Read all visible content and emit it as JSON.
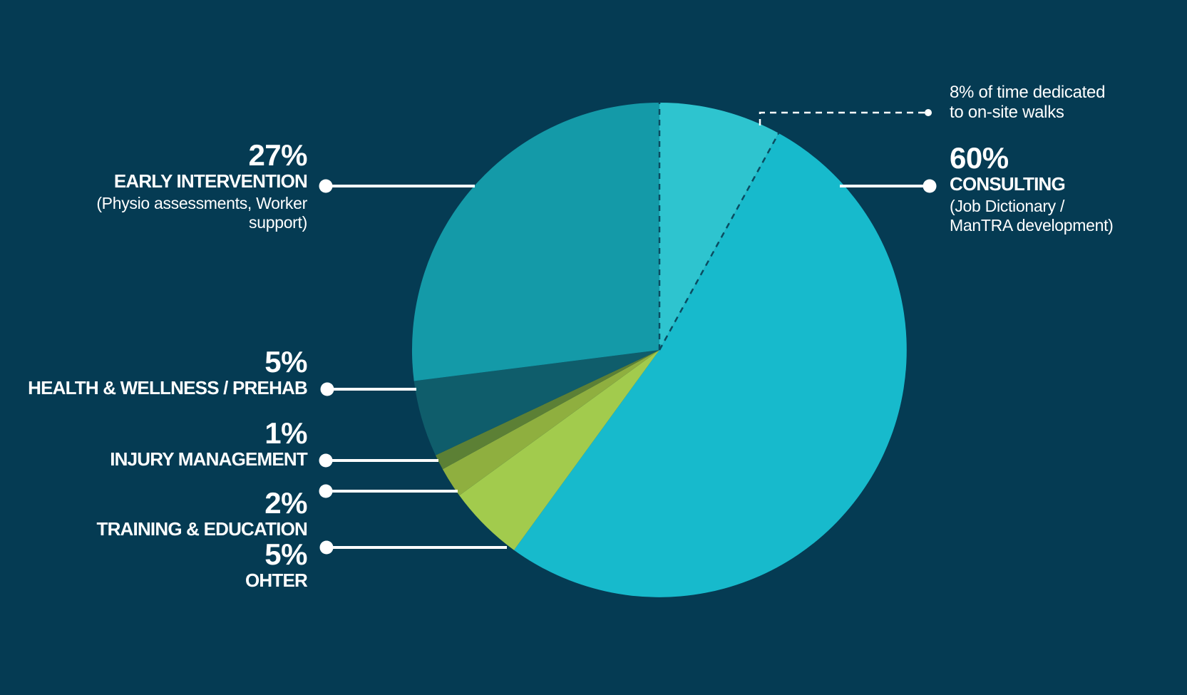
{
  "canvas": {
    "background": "#053B53"
  },
  "chart_data": {
    "type": "pie",
    "title": "",
    "legend": "none",
    "unit": "%",
    "start_angle_deg": 0,
    "clockwise": true,
    "divider_color": "#0A4C61",
    "leader_color": "#FFFFFF",
    "slices": [
      {
        "id": "consulting-on-site-walks",
        "label": "CONSULTING - on-site walks",
        "value": 8,
        "color": "#2EC4CF",
        "dashed_outline": true,
        "note": "8% of time dedicated to on-site walks (sub-slice of the 60% CONSULTING share)"
      },
      {
        "id": "consulting",
        "label": "CONSULTING (Job Dictionary / ManTRA development)",
        "value": 52,
        "color": "#17BACC",
        "note": "remainder of the 60% CONSULTING share"
      },
      {
        "id": "other",
        "label": "OHTER",
        "value": 5,
        "color": "#A2CB4D"
      },
      {
        "id": "training-education",
        "label": "TRAINING & EDUCATION",
        "value": 2,
        "color": "#8FAF3F"
      },
      {
        "id": "injury-management",
        "label": "INJURY MANAGEMENT",
        "value": 1,
        "color": "#5C8035"
      },
      {
        "id": "health-wellness-prehab",
        "label": "HEALTH & WELLNESS / PREHAB",
        "value": 5,
        "color": "#0F5D6B"
      },
      {
        "id": "early-intervention",
        "label": "EARLY INTERVENTION (Physio assessments, Worker support)",
        "value": 27,
        "color": "#149AA8"
      }
    ]
  },
  "callouts": {
    "early_intervention": {
      "pct": "27%",
      "title": "EARLY INTERVENTION",
      "subtitle_lines": [
        "(Physio assessments, Worker",
        "support)"
      ]
    },
    "health_wellness_prehab": {
      "pct": "5%",
      "title": "HEALTH & WELLNESS / PREHAB"
    },
    "injury_management": {
      "pct": "1%",
      "title": "INJURY MANAGEMENT"
    },
    "training_education": {
      "pct": "2%",
      "title": "TRAINING & EDUCATION"
    },
    "other": {
      "pct": "5%",
      "title": "OHTER"
    },
    "consulting": {
      "pct": "60%",
      "title": "CONSULTING",
      "subtitle_lines": [
        "(Job Dictionary /",
        "ManTRA development)"
      ]
    },
    "walks_note": {
      "lines": [
        "8% of time dedicated",
        "to on-site walks"
      ]
    }
  }
}
